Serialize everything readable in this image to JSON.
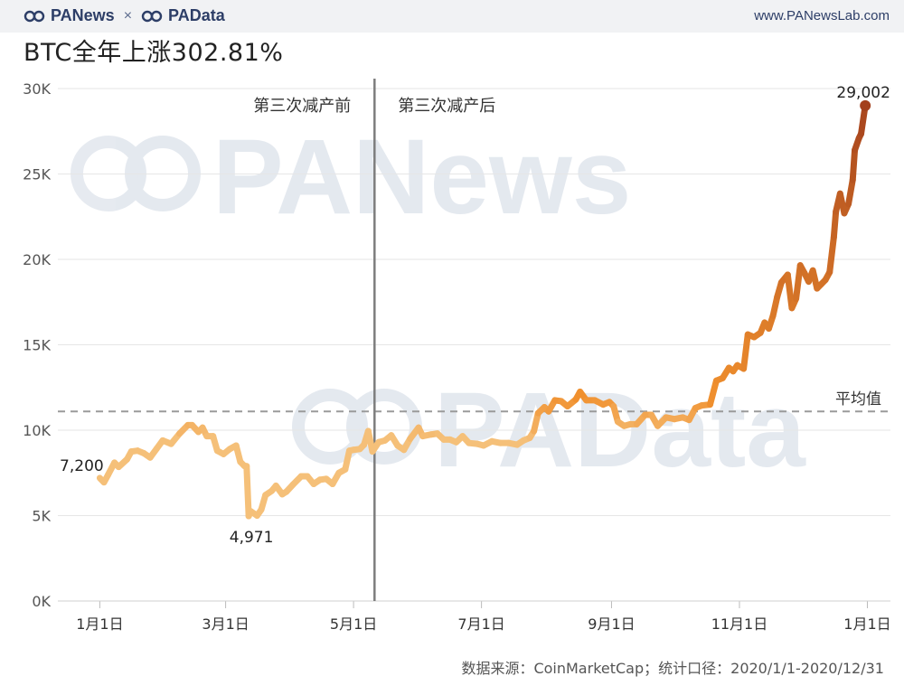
{
  "header": {
    "brand_left": "PANews",
    "brand_sep": "×",
    "brand_right": "PAData",
    "site": "www.PANewsLab.com"
  },
  "watermark": {
    "top": "PANews",
    "bottom": "PAData"
  },
  "footer": {
    "source": "数据来源：CoinMarketCap；统计口径：2020/1/1-2020/12/31"
  },
  "colors": {
    "line_start": "#f5c079",
    "line_mid": "#f0902e",
    "line_end": "#a3401c",
    "grid": "#e6e6e6",
    "average": "#9a9a9a",
    "divider": "#7d7d7d"
  },
  "chart_data": {
    "type": "line",
    "title": "BTC全年上涨302.81%",
    "xlabel": "",
    "ylabel": "",
    "ylim": [
      0,
      30000
    ],
    "yticks": [
      {
        "value": 0,
        "label": "0K"
      },
      {
        "value": 5000,
        "label": "5K"
      },
      {
        "value": 10000,
        "label": "10K"
      },
      {
        "value": 15000,
        "label": "15K"
      },
      {
        "value": 20000,
        "label": "20K"
      },
      {
        "value": 25000,
        "label": "25K"
      },
      {
        "value": 30000,
        "label": "30K"
      }
    ],
    "xticks": [
      {
        "date": "2020-01-01",
        "label": "1月1日"
      },
      {
        "date": "2020-03-01",
        "label": "3月1日"
      },
      {
        "date": "2020-05-01",
        "label": "5月1日"
      },
      {
        "date": "2020-07-01",
        "label": "7月1日"
      },
      {
        "date": "2020-09-01",
        "label": "9月1日"
      },
      {
        "date": "2020-11-01",
        "label": "11月1日"
      },
      {
        "date": "2021-01-01",
        "label": "1月1日"
      }
    ],
    "xlim": [
      "2019-12-12",
      "2021-01-12"
    ],
    "average": {
      "value": 11100,
      "label": "平均值"
    },
    "halving": {
      "date": "2020-05-11",
      "before_label": "第三次减产前",
      "after_label": "第三次减产后"
    },
    "annotations": [
      {
        "date": "2020-01-01",
        "value": 7200,
        "label": "7,200"
      },
      {
        "date": "2020-03-12",
        "value": 4971,
        "label": "4,971"
      },
      {
        "date": "2020-12-31",
        "value": 29002,
        "label": "29,002"
      }
    ],
    "series": [
      {
        "points": [
          [
            "2020-01-01",
            7200
          ],
          [
            "2020-01-03",
            6950
          ],
          [
            "2020-01-05",
            7400
          ],
          [
            "2020-01-08",
            8100
          ],
          [
            "2020-01-10",
            7850
          ],
          [
            "2020-01-14",
            8300
          ],
          [
            "2020-01-16",
            8750
          ],
          [
            "2020-01-19",
            8800
          ],
          [
            "2020-01-22",
            8650
          ],
          [
            "2020-01-25",
            8400
          ],
          [
            "2020-01-28",
            8900
          ],
          [
            "2020-01-31",
            9400
          ],
          [
            "2020-02-04",
            9200
          ],
          [
            "2020-02-08",
            9800
          ],
          [
            "2020-02-12",
            10300
          ],
          [
            "2020-02-14",
            10300
          ],
          [
            "2020-02-17",
            9900
          ],
          [
            "2020-02-19",
            10150
          ],
          [
            "2020-02-21",
            9650
          ],
          [
            "2020-02-24",
            9650
          ],
          [
            "2020-02-26",
            8800
          ],
          [
            "2020-02-29",
            8600
          ],
          [
            "2020-03-03",
            8900
          ],
          [
            "2020-03-06",
            9100
          ],
          [
            "2020-03-08",
            8150
          ],
          [
            "2020-03-10",
            7900
          ],
          [
            "2020-03-11",
            7900
          ],
          [
            "2020-03-12",
            4971
          ],
          [
            "2020-03-13",
            5250
          ],
          [
            "2020-03-16",
            5000
          ],
          [
            "2020-03-18",
            5350
          ],
          [
            "2020-03-20",
            6200
          ],
          [
            "2020-03-23",
            6450
          ],
          [
            "2020-03-25",
            6750
          ],
          [
            "2020-03-28",
            6250
          ],
          [
            "2020-03-30",
            6400
          ],
          [
            "2020-04-02",
            6800
          ],
          [
            "2020-04-06",
            7300
          ],
          [
            "2020-04-09",
            7300
          ],
          [
            "2020-04-12",
            6850
          ],
          [
            "2020-04-15",
            7100
          ],
          [
            "2020-04-18",
            7150
          ],
          [
            "2020-04-21",
            6850
          ],
          [
            "2020-04-24",
            7500
          ],
          [
            "2020-04-27",
            7700
          ],
          [
            "2020-04-29",
            8800
          ],
          [
            "2020-05-01",
            8850
          ],
          [
            "2020-05-04",
            8900
          ],
          [
            "2020-05-06",
            9150
          ],
          [
            "2020-05-08",
            9950
          ],
          [
            "2020-05-10",
            8750
          ],
          [
            "2020-05-13",
            9300
          ],
          [
            "2020-05-16",
            9400
          ],
          [
            "2020-05-19",
            9700
          ],
          [
            "2020-05-22",
            9100
          ],
          [
            "2020-05-25",
            8850
          ],
          [
            "2020-05-28",
            9500
          ],
          [
            "2020-06-01",
            10150
          ],
          [
            "2020-06-03",
            9650
          ],
          [
            "2020-06-07",
            9750
          ],
          [
            "2020-06-10",
            9800
          ],
          [
            "2020-06-13",
            9450
          ],
          [
            "2020-06-16",
            9450
          ],
          [
            "2020-06-19",
            9300
          ],
          [
            "2020-06-22",
            9650
          ],
          [
            "2020-06-25",
            9250
          ],
          [
            "2020-06-29",
            9200
          ],
          [
            "2020-07-02",
            9100
          ],
          [
            "2020-07-06",
            9350
          ],
          [
            "2020-07-10",
            9250
          ],
          [
            "2020-07-14",
            9250
          ],
          [
            "2020-07-18",
            9150
          ],
          [
            "2020-07-21",
            9400
          ],
          [
            "2020-07-24",
            9550
          ],
          [
            "2020-07-26",
            9950
          ],
          [
            "2020-07-28",
            11000
          ],
          [
            "2020-07-31",
            11350
          ],
          [
            "2020-08-02",
            11100
          ],
          [
            "2020-08-05",
            11750
          ],
          [
            "2020-08-08",
            11700
          ],
          [
            "2020-08-11",
            11400
          ],
          [
            "2020-08-15",
            11800
          ],
          [
            "2020-08-17",
            12250
          ],
          [
            "2020-08-20",
            11750
          ],
          [
            "2020-08-24",
            11750
          ],
          [
            "2020-08-28",
            11500
          ],
          [
            "2020-08-31",
            11650
          ],
          [
            "2020-09-02",
            11400
          ],
          [
            "2020-09-04",
            10500
          ],
          [
            "2020-09-07",
            10250
          ],
          [
            "2020-09-10",
            10350
          ],
          [
            "2020-09-13",
            10350
          ],
          [
            "2020-09-17",
            10900
          ],
          [
            "2020-09-20",
            10900
          ],
          [
            "2020-09-23",
            10250
          ],
          [
            "2020-09-27",
            10750
          ],
          [
            "2020-10-01",
            10650
          ],
          [
            "2020-10-05",
            10750
          ],
          [
            "2020-10-08",
            10600
          ],
          [
            "2020-10-11",
            11300
          ],
          [
            "2020-10-14",
            11450
          ],
          [
            "2020-10-18",
            11500
          ],
          [
            "2020-10-21",
            12900
          ],
          [
            "2020-10-24",
            13050
          ],
          [
            "2020-10-27",
            13650
          ],
          [
            "2020-10-29",
            13450
          ],
          [
            "2020-10-31",
            13800
          ],
          [
            "2020-11-03",
            13600
          ],
          [
            "2020-11-05",
            15600
          ],
          [
            "2020-11-08",
            15450
          ],
          [
            "2020-11-11",
            15700
          ],
          [
            "2020-11-13",
            16300
          ],
          [
            "2020-11-15",
            15950
          ],
          [
            "2020-11-17",
            16700
          ],
          [
            "2020-11-19",
            17800
          ],
          [
            "2020-11-21",
            18650
          ],
          [
            "2020-11-24",
            19100
          ],
          [
            "2020-11-26",
            17150
          ],
          [
            "2020-11-28",
            17700
          ],
          [
            "2020-11-30",
            19650
          ],
          [
            "2020-12-02",
            19200
          ],
          [
            "2020-12-04",
            18700
          ],
          [
            "2020-12-06",
            19350
          ],
          [
            "2020-12-08",
            18300
          ],
          [
            "2020-12-10",
            18550
          ],
          [
            "2020-12-12",
            18800
          ],
          [
            "2020-12-14",
            19250
          ],
          [
            "2020-12-16",
            21300
          ],
          [
            "2020-12-17",
            22800
          ],
          [
            "2020-12-19",
            23850
          ],
          [
            "2020-12-21",
            22700
          ],
          [
            "2020-12-23",
            23250
          ],
          [
            "2020-12-25",
            24650
          ],
          [
            "2020-12-26",
            26400
          ],
          [
            "2020-12-28",
            27100
          ],
          [
            "2020-12-29",
            27350
          ],
          [
            "2020-12-31",
            29002
          ]
        ]
      }
    ]
  }
}
